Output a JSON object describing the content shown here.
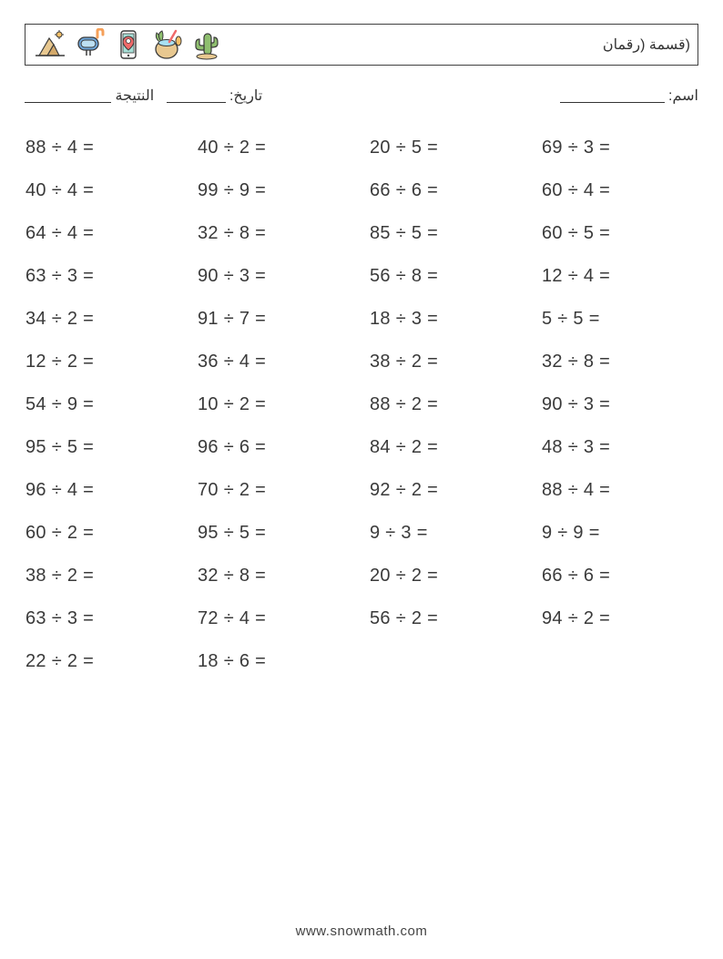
{
  "header": {
    "title": "(قسمة (رقمان",
    "icons": [
      "pyramid-icon",
      "snorkel-icon",
      "phone-location-icon",
      "coconut-drink-icon",
      "cactus-icon"
    ]
  },
  "labels": {
    "name": "اسم:",
    "date": "تاريخ:",
    "score": "النتيجة"
  },
  "style": {
    "text_color": "#3a3a3a",
    "border_color": "#404040",
    "bg_color": "#ffffff",
    "problem_fontsize": 20,
    "title_fontsize": 16,
    "label_fontsize": 16,
    "footer_fontsize": 15,
    "icon_colors": {
      "beige": "#e8c890",
      "brown": "#8b6f47",
      "teal": "#5fb8a8",
      "blue": "#6fa8dc",
      "orange": "#f5a05a",
      "green": "#8fbf6f",
      "dark": "#3a3a3a"
    }
  },
  "problems": [
    [
      "88 ÷ 4 =",
      "40 ÷ 2 =",
      "20 ÷ 5 =",
      "69 ÷ 3 ="
    ],
    [
      "40 ÷ 4 =",
      "99 ÷ 9 =",
      "66 ÷ 6 =",
      "60 ÷ 4 ="
    ],
    [
      "64 ÷ 4 =",
      "32 ÷ 8 =",
      "85 ÷ 5 =",
      "60 ÷ 5 ="
    ],
    [
      "63 ÷ 3 =",
      "90 ÷ 3 =",
      "56 ÷ 8 =",
      "12 ÷ 4 ="
    ],
    [
      "34 ÷ 2 =",
      "91 ÷ 7 =",
      "18 ÷ 3 =",
      "5 ÷ 5 ="
    ],
    [
      "12 ÷ 2 =",
      "36 ÷ 4 =",
      "38 ÷ 2 =",
      "32 ÷ 8 ="
    ],
    [
      "54 ÷ 9 =",
      "10 ÷ 2 =",
      "88 ÷ 2 =",
      "90 ÷ 3 ="
    ],
    [
      "95 ÷ 5 =",
      "96 ÷ 6 =",
      "84 ÷ 2 =",
      "48 ÷ 3 ="
    ],
    [
      "96 ÷ 4 =",
      "70 ÷ 2 =",
      "92 ÷ 2 =",
      "88 ÷ 4 ="
    ],
    [
      "60 ÷ 2 =",
      "95 ÷ 5 =",
      "9 ÷ 3 =",
      "9 ÷ 9 ="
    ],
    [
      "38 ÷ 2 =",
      "32 ÷ 8 =",
      "20 ÷ 2 =",
      "66 ÷ 6 ="
    ],
    [
      "63 ÷ 3 =",
      "72 ÷ 4 =",
      "56 ÷ 2 =",
      "94 ÷ 2 ="
    ],
    [
      "22 ÷ 2 =",
      "18 ÷ 6 =",
      null,
      null
    ]
  ],
  "footer": "www.snowmath.com"
}
